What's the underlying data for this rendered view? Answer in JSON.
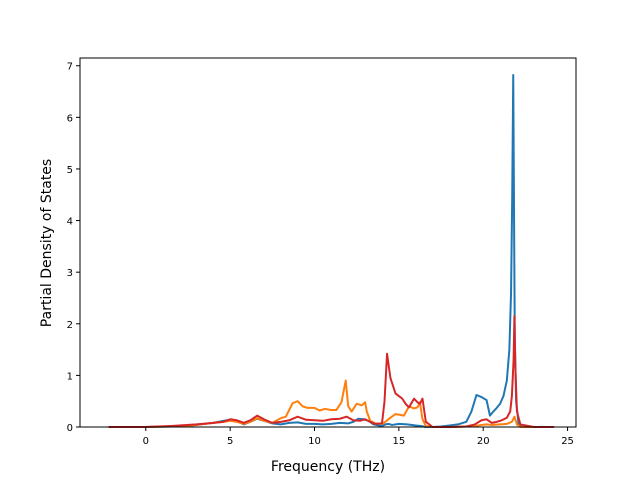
{
  "chart_data": {
    "type": "line",
    "xlabel": "Frequency (THz)",
    "ylabel": "Partial Density of States",
    "xlim": [
      -3.9,
      25.5
    ],
    "ylim": [
      0,
      7.15
    ],
    "xticks": [
      0,
      5,
      10,
      15,
      20,
      25
    ],
    "yticks": [
      0,
      1,
      2,
      3,
      4,
      5,
      6,
      7
    ],
    "grid": false,
    "series": [
      {
        "color": "#1f77b4",
        "x": [
          -2.2,
          0.0,
          1.5,
          3.0,
          4.0,
          4.6,
          5.0,
          5.4,
          5.8,
          6.2,
          6.6,
          7.0,
          7.5,
          8.0,
          8.5,
          9.0,
          9.5,
          10.0,
          10.5,
          11.0,
          11.5,
          12.0,
          12.3,
          12.6,
          12.9,
          13.2,
          13.5,
          14.0,
          14.2,
          14.4,
          14.6,
          15.0,
          15.5,
          16.0,
          16.3,
          16.6,
          17.0,
          17.5,
          18.0,
          18.5,
          19.0,
          19.3,
          19.6,
          19.9,
          20.2,
          20.4,
          20.6,
          20.8,
          21.0,
          21.2,
          21.4,
          21.55,
          21.65,
          21.72,
          21.78,
          21.82,
          21.87,
          21.95,
          22.1,
          22.3,
          23.0,
          24.2
        ],
        "y": [
          0.0,
          0.0,
          0.01,
          0.04,
          0.08,
          0.12,
          0.14,
          0.12,
          0.05,
          0.1,
          0.16,
          0.12,
          0.07,
          0.05,
          0.08,
          0.09,
          0.06,
          0.06,
          0.05,
          0.06,
          0.08,
          0.07,
          0.1,
          0.16,
          0.15,
          0.12,
          0.05,
          0.02,
          0.05,
          0.06,
          0.04,
          0.06,
          0.05,
          0.03,
          0.02,
          0.0,
          0.0,
          0.01,
          0.03,
          0.05,
          0.1,
          0.3,
          0.62,
          0.58,
          0.52,
          0.22,
          0.3,
          0.37,
          0.45,
          0.6,
          0.9,
          1.5,
          2.6,
          4.5,
          6.82,
          4.5,
          1.8,
          0.5,
          0.05,
          0.0,
          0.0,
          0.0
        ]
      },
      {
        "color": "#ff7f0e",
        "x": [
          -2.2,
          0.0,
          1.5,
          3.0,
          4.0,
          4.6,
          5.0,
          5.4,
          5.8,
          6.2,
          6.6,
          7.0,
          7.5,
          8.0,
          8.3,
          8.7,
          9.0,
          9.3,
          9.6,
          10.0,
          10.3,
          10.6,
          11.0,
          11.3,
          11.6,
          11.85,
          12.0,
          12.2,
          12.5,
          12.8,
          13.0,
          13.1,
          13.3,
          13.6,
          14.0,
          14.2,
          14.5,
          14.8,
          15.0,
          15.3,
          15.6,
          15.9,
          16.1,
          16.25,
          16.4,
          16.6,
          17.0,
          18.0,
          19.0,
          19.5,
          19.9,
          20.2,
          20.5,
          21.0,
          21.4,
          21.7,
          21.85,
          22.0,
          22.2,
          23.0,
          24.2
        ],
        "y": [
          0.0,
          0.0,
          0.01,
          0.04,
          0.08,
          0.1,
          0.12,
          0.1,
          0.06,
          0.1,
          0.17,
          0.12,
          0.08,
          0.17,
          0.2,
          0.46,
          0.5,
          0.4,
          0.37,
          0.37,
          0.32,
          0.35,
          0.33,
          0.33,
          0.48,
          0.9,
          0.4,
          0.3,
          0.45,
          0.42,
          0.48,
          0.3,
          0.12,
          0.07,
          0.06,
          0.1,
          0.18,
          0.25,
          0.24,
          0.22,
          0.4,
          0.36,
          0.38,
          0.48,
          0.15,
          0.02,
          0.0,
          0.0,
          0.01,
          0.02,
          0.04,
          0.05,
          0.04,
          0.05,
          0.06,
          0.1,
          0.2,
          0.05,
          0.0,
          0.0,
          0.0
        ]
      },
      {
        "color": "#d62728",
        "x": [
          -2.2,
          0.0,
          1.5,
          3.0,
          4.0,
          4.6,
          5.0,
          5.4,
          5.8,
          6.2,
          6.6,
          7.0,
          7.5,
          8.0,
          8.5,
          9.0,
          9.5,
          10.0,
          10.5,
          11.0,
          11.5,
          11.9,
          12.3,
          12.7,
          13.0,
          13.3,
          13.6,
          14.0,
          14.15,
          14.3,
          14.5,
          14.8,
          15.0,
          15.2,
          15.4,
          15.6,
          15.9,
          16.1,
          16.25,
          16.4,
          16.6,
          17.0,
          18.0,
          19.0,
          19.5,
          19.9,
          20.2,
          20.5,
          20.8,
          21.1,
          21.4,
          21.6,
          21.7,
          21.8,
          21.85,
          21.9,
          22.0,
          22.2,
          23.0,
          24.2
        ],
        "y": [
          0.0,
          0.0,
          0.02,
          0.05,
          0.08,
          0.1,
          0.15,
          0.13,
          0.08,
          0.13,
          0.22,
          0.15,
          0.08,
          0.1,
          0.13,
          0.2,
          0.14,
          0.13,
          0.12,
          0.15,
          0.16,
          0.2,
          0.13,
          0.12,
          0.15,
          0.1,
          0.06,
          0.07,
          0.5,
          1.42,
          0.95,
          0.65,
          0.6,
          0.55,
          0.45,
          0.38,
          0.55,
          0.48,
          0.45,
          0.55,
          0.1,
          0.0,
          0.0,
          0.01,
          0.05,
          0.13,
          0.15,
          0.08,
          0.1,
          0.13,
          0.18,
          0.3,
          0.6,
          1.3,
          2.15,
          1.2,
          0.3,
          0.05,
          0.0,
          0.0
        ]
      }
    ]
  }
}
